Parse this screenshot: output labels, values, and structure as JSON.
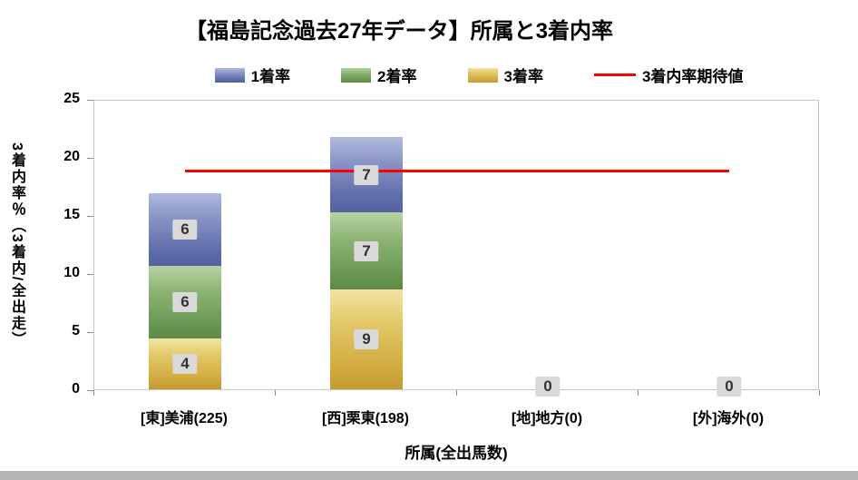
{
  "title": "【福島記念過去27年データ】所属と3着内率",
  "legend": [
    {
      "label": "1着率",
      "swatch": "blue"
    },
    {
      "label": "2着率",
      "swatch": "green"
    },
    {
      "label": "3着率",
      "swatch": "gold"
    },
    {
      "label": "3着内率期待値",
      "swatch": "line"
    }
  ],
  "chart_data": {
    "type": "bar",
    "stacked": true,
    "title": "【福島記念過去27年データ】所属と3着内率",
    "xlabel": "所属(全出馬数)",
    "ylabel": "3着内率％（3着内/全出走）",
    "ylim": [
      0,
      25
    ],
    "yticks": [
      0,
      5,
      10,
      15,
      20,
      25
    ],
    "grid": false,
    "legend_position": "top",
    "categories": [
      "[東]美浦(225)",
      "[西]栗東(198)",
      "[地]地方(0)",
      "[外]海外(0)"
    ],
    "series": [
      {
        "name": "3着率",
        "swatch": "gold",
        "values_pct": [
          4.4,
          8.6,
          0,
          0
        ],
        "labels": [
          4,
          9,
          0,
          0
        ],
        "color": "#d9b94e"
      },
      {
        "name": "2着率",
        "swatch": "green",
        "values_pct": [
          6.2,
          6.6,
          0,
          0
        ],
        "labels": [
          6,
          7,
          0,
          0
        ],
        "color": "#74a15c"
      },
      {
        "name": "1着率",
        "swatch": "blue",
        "values_pct": [
          6.3,
          6.5,
          0,
          0
        ],
        "labels": [
          6,
          7,
          0,
          0
        ],
        "color": "#6674ad"
      }
    ],
    "line_series": {
      "name": "3着内率期待値",
      "value": 19,
      "color": "#ff0000"
    }
  }
}
